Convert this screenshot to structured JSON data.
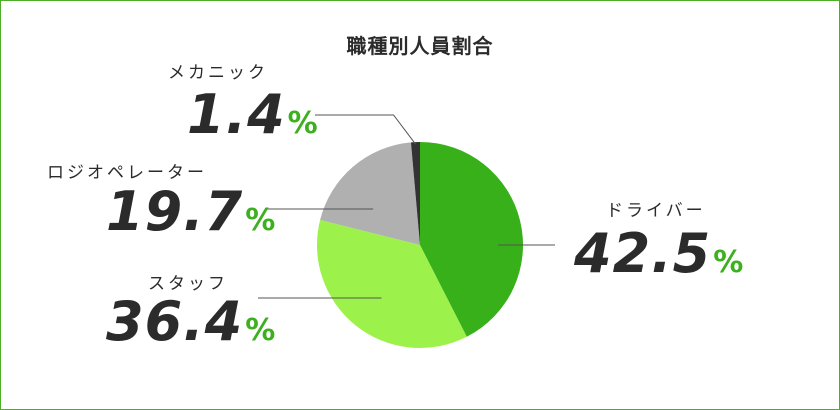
{
  "chart_data": {
    "type": "pie",
    "title": "職種別人員割合",
    "unit": "%",
    "start_angle_deg": 0,
    "direction": "clockwise",
    "slices": [
      {
        "label": "ドライバー",
        "value": 42.5,
        "value_text": "42.5",
        "color": "#38b01a"
      },
      {
        "label": "スタッフ",
        "value": 36.4,
        "value_text": "36.4",
        "color": "#9cf24a"
      },
      {
        "label": "ロジオペレーター",
        "value": 19.7,
        "value_text": "19.7",
        "color": "#b0b0b0"
      },
      {
        "label": "メカニック",
        "value": 1.4,
        "value_text": "1.4",
        "color": "#333333"
      }
    ]
  },
  "colors": {
    "accent": "#3cb01e",
    "border": "#4caf28",
    "text": "#2b2b2b",
    "leader": "#555555"
  }
}
